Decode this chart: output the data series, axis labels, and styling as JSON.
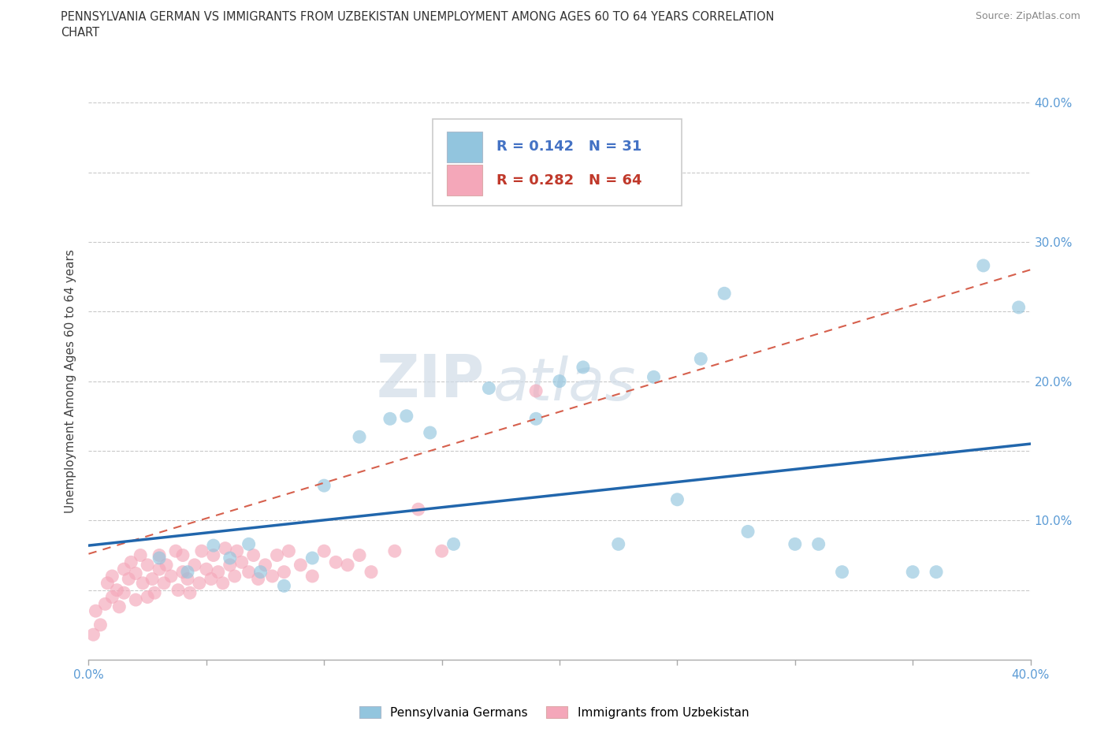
{
  "title_line1": "PENNSYLVANIA GERMAN VS IMMIGRANTS FROM UZBEKISTAN UNEMPLOYMENT AMONG AGES 60 TO 64 YEARS CORRELATION",
  "title_line2": "CHART",
  "source": "Source: ZipAtlas.com",
  "ylabel": "Unemployment Among Ages 60 to 64 years",
  "xlim": [
    0.0,
    0.4
  ],
  "ylim": [
    0.0,
    0.4
  ],
  "blue_color": "#92c5de",
  "pink_color": "#f4a7b9",
  "blue_line_color": "#2166ac",
  "pink_line_color": "#d6604d",
  "legend_R_blue": "0.142",
  "legend_N_blue": "31",
  "legend_R_pink": "0.282",
  "legend_N_pink": "64",
  "watermark_zip": "ZIP",
  "watermark_atlas": "atlas",
  "grid_color": "#bbbbbb",
  "background_color": "#ffffff",
  "blue_x": [
    0.053,
    0.073,
    0.083,
    0.1,
    0.128,
    0.145,
    0.17,
    0.19,
    0.21,
    0.24,
    0.26,
    0.28,
    0.3,
    0.32,
    0.35,
    0.38,
    0.395,
    0.03,
    0.06,
    0.095,
    0.115,
    0.135,
    0.155,
    0.2,
    0.225,
    0.25,
    0.27,
    0.31,
    0.36,
    0.042,
    0.068
  ],
  "blue_y": [
    0.082,
    0.063,
    0.053,
    0.125,
    0.173,
    0.163,
    0.195,
    0.173,
    0.21,
    0.203,
    0.216,
    0.092,
    0.083,
    0.063,
    0.063,
    0.283,
    0.253,
    0.073,
    0.073,
    0.073,
    0.16,
    0.175,
    0.083,
    0.2,
    0.083,
    0.115,
    0.263,
    0.083,
    0.063,
    0.063,
    0.083
  ],
  "pink_x": [
    0.003,
    0.005,
    0.007,
    0.008,
    0.01,
    0.01,
    0.012,
    0.013,
    0.015,
    0.015,
    0.017,
    0.018,
    0.02,
    0.02,
    0.022,
    0.023,
    0.025,
    0.025,
    0.027,
    0.028,
    0.03,
    0.03,
    0.032,
    0.033,
    0.035,
    0.037,
    0.038,
    0.04,
    0.04,
    0.042,
    0.043,
    0.045,
    0.047,
    0.048,
    0.05,
    0.052,
    0.053,
    0.055,
    0.057,
    0.058,
    0.06,
    0.062,
    0.063,
    0.065,
    0.068,
    0.07,
    0.072,
    0.075,
    0.078,
    0.08,
    0.083,
    0.085,
    0.09,
    0.095,
    0.1,
    0.105,
    0.11,
    0.115,
    0.12,
    0.13,
    0.14,
    0.15,
    0.19,
    0.002
  ],
  "pink_y": [
    0.035,
    0.025,
    0.04,
    0.055,
    0.06,
    0.045,
    0.05,
    0.038,
    0.065,
    0.048,
    0.058,
    0.07,
    0.043,
    0.062,
    0.075,
    0.055,
    0.045,
    0.068,
    0.058,
    0.048,
    0.065,
    0.075,
    0.055,
    0.068,
    0.06,
    0.078,
    0.05,
    0.063,
    0.075,
    0.058,
    0.048,
    0.068,
    0.055,
    0.078,
    0.065,
    0.058,
    0.075,
    0.063,
    0.055,
    0.08,
    0.068,
    0.06,
    0.078,
    0.07,
    0.063,
    0.075,
    0.058,
    0.068,
    0.06,
    0.075,
    0.063,
    0.078,
    0.068,
    0.06,
    0.078,
    0.07,
    0.068,
    0.075,
    0.063,
    0.078,
    0.108,
    0.078,
    0.193,
    0.018
  ]
}
